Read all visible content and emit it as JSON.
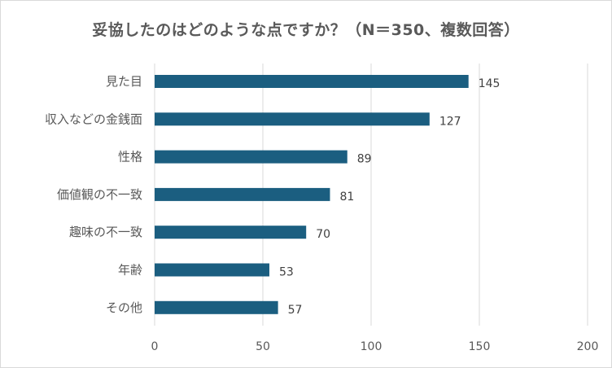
{
  "chart_data": {
    "type": "bar",
    "orientation": "horizontal",
    "title": "妥協したのはどのような点ですか？（N＝350、複数回答）",
    "categories": [
      "見た目",
      "収入などの金銭面",
      "性格",
      "価値観の不一致",
      "趣味の不一致",
      "年齢",
      "その他"
    ],
    "values": [
      145,
      127,
      89,
      81,
      70,
      53,
      57
    ],
    "xlim": [
      0,
      200
    ],
    "xticks": [
      0,
      50,
      100,
      150,
      200
    ],
    "grid": true,
    "bar_color": "#1b5e80",
    "xlabel": "",
    "ylabel": ""
  }
}
